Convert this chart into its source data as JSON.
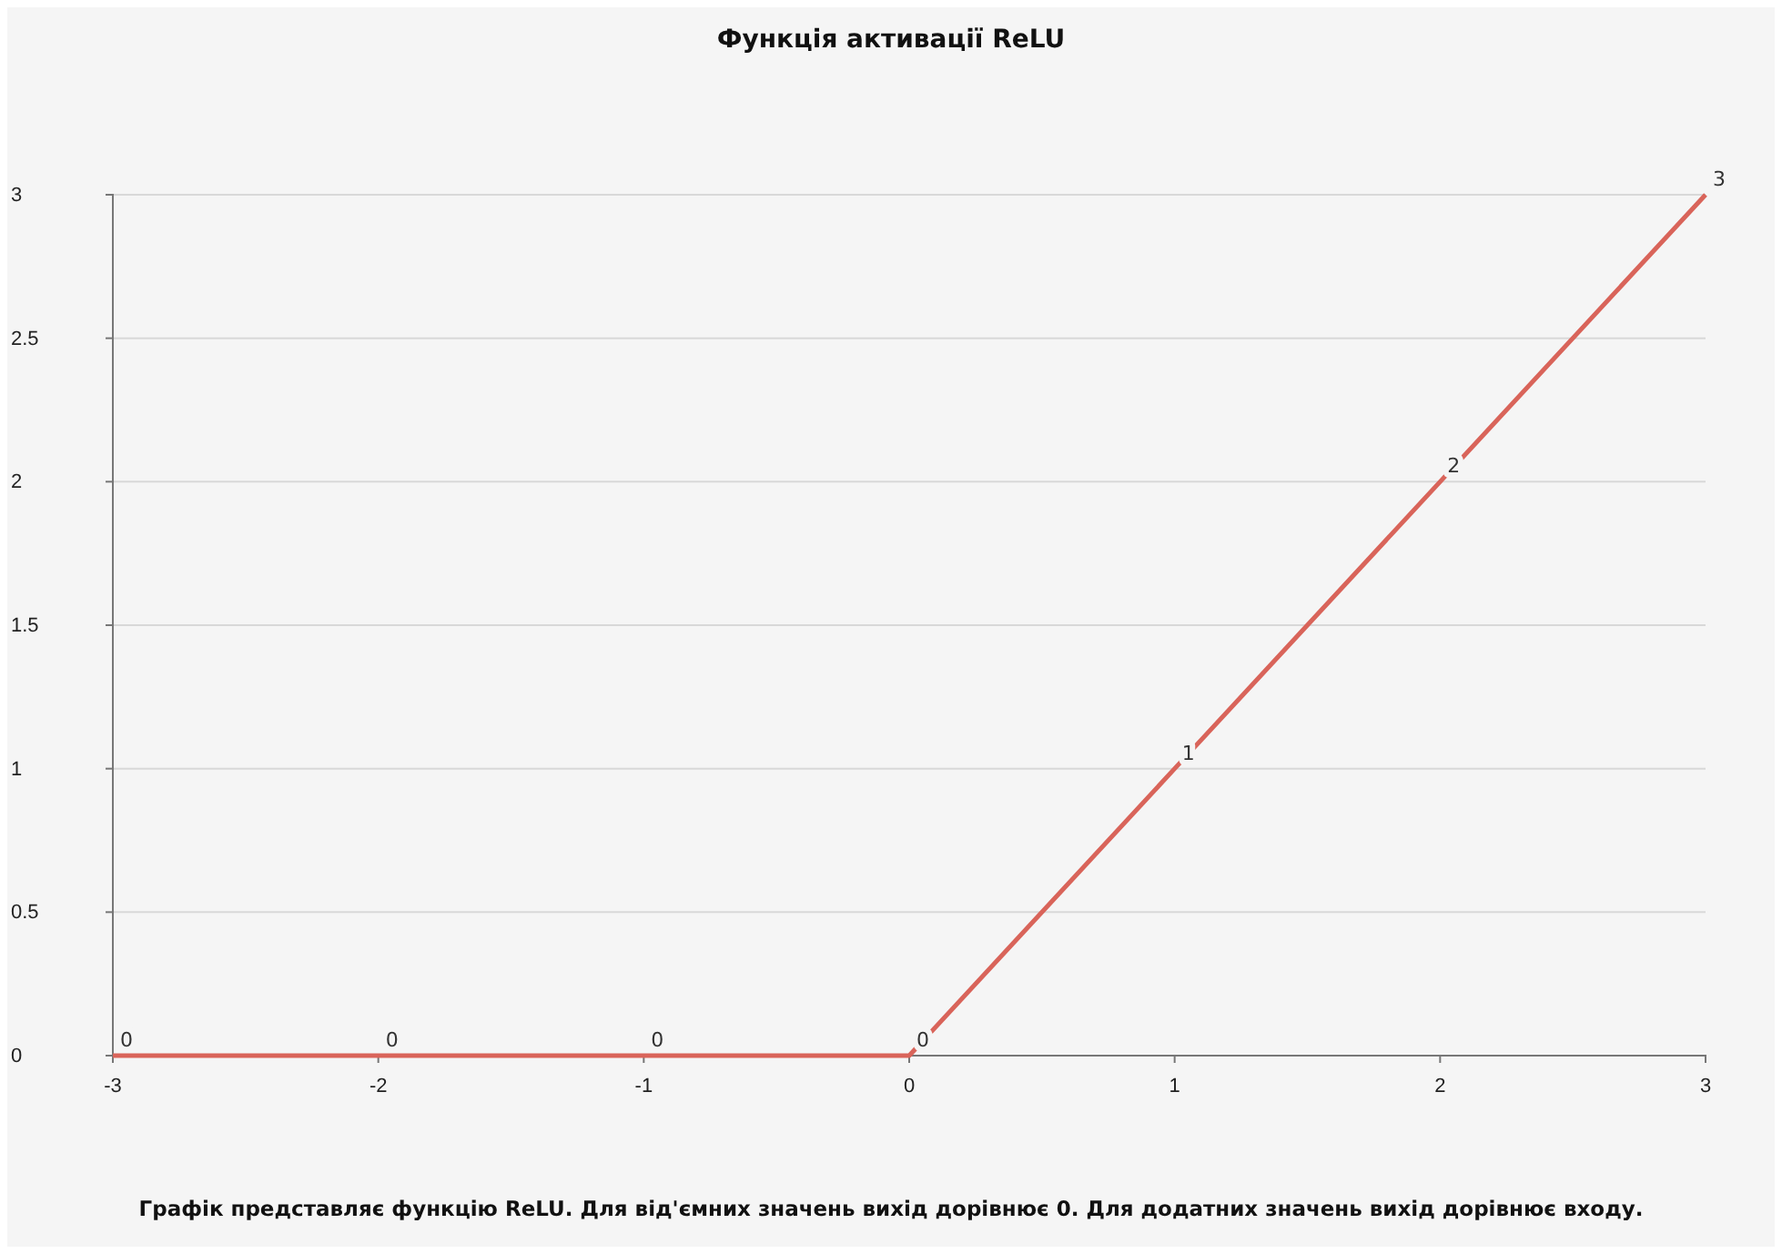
{
  "chart_data": {
    "type": "line",
    "title": "Функція активації ReLU",
    "x": [
      -3,
      -2,
      -1,
      0,
      1,
      2,
      3
    ],
    "series": [
      {
        "color": "#d9645a",
        "values": [
          0,
          0,
          0,
          0,
          1,
          2,
          3
        ]
      }
    ],
    "xlim": [
      -3,
      3
    ],
    "xticks": [
      -3,
      -2,
      -1,
      0,
      1,
      2,
      3
    ],
    "ylim": [
      0,
      3
    ],
    "yticks": [
      0,
      0.5,
      1,
      1.5,
      2,
      2.5,
      3
    ],
    "grid": "y",
    "data_labels": true,
    "marker": "none",
    "line_style": "solid",
    "annotations": [
      "Графік представляє функцію ReLU. Для від'ємних значень вихід дорівнює 0. Для додатних значень вихід дорівнює входу."
    ]
  }
}
